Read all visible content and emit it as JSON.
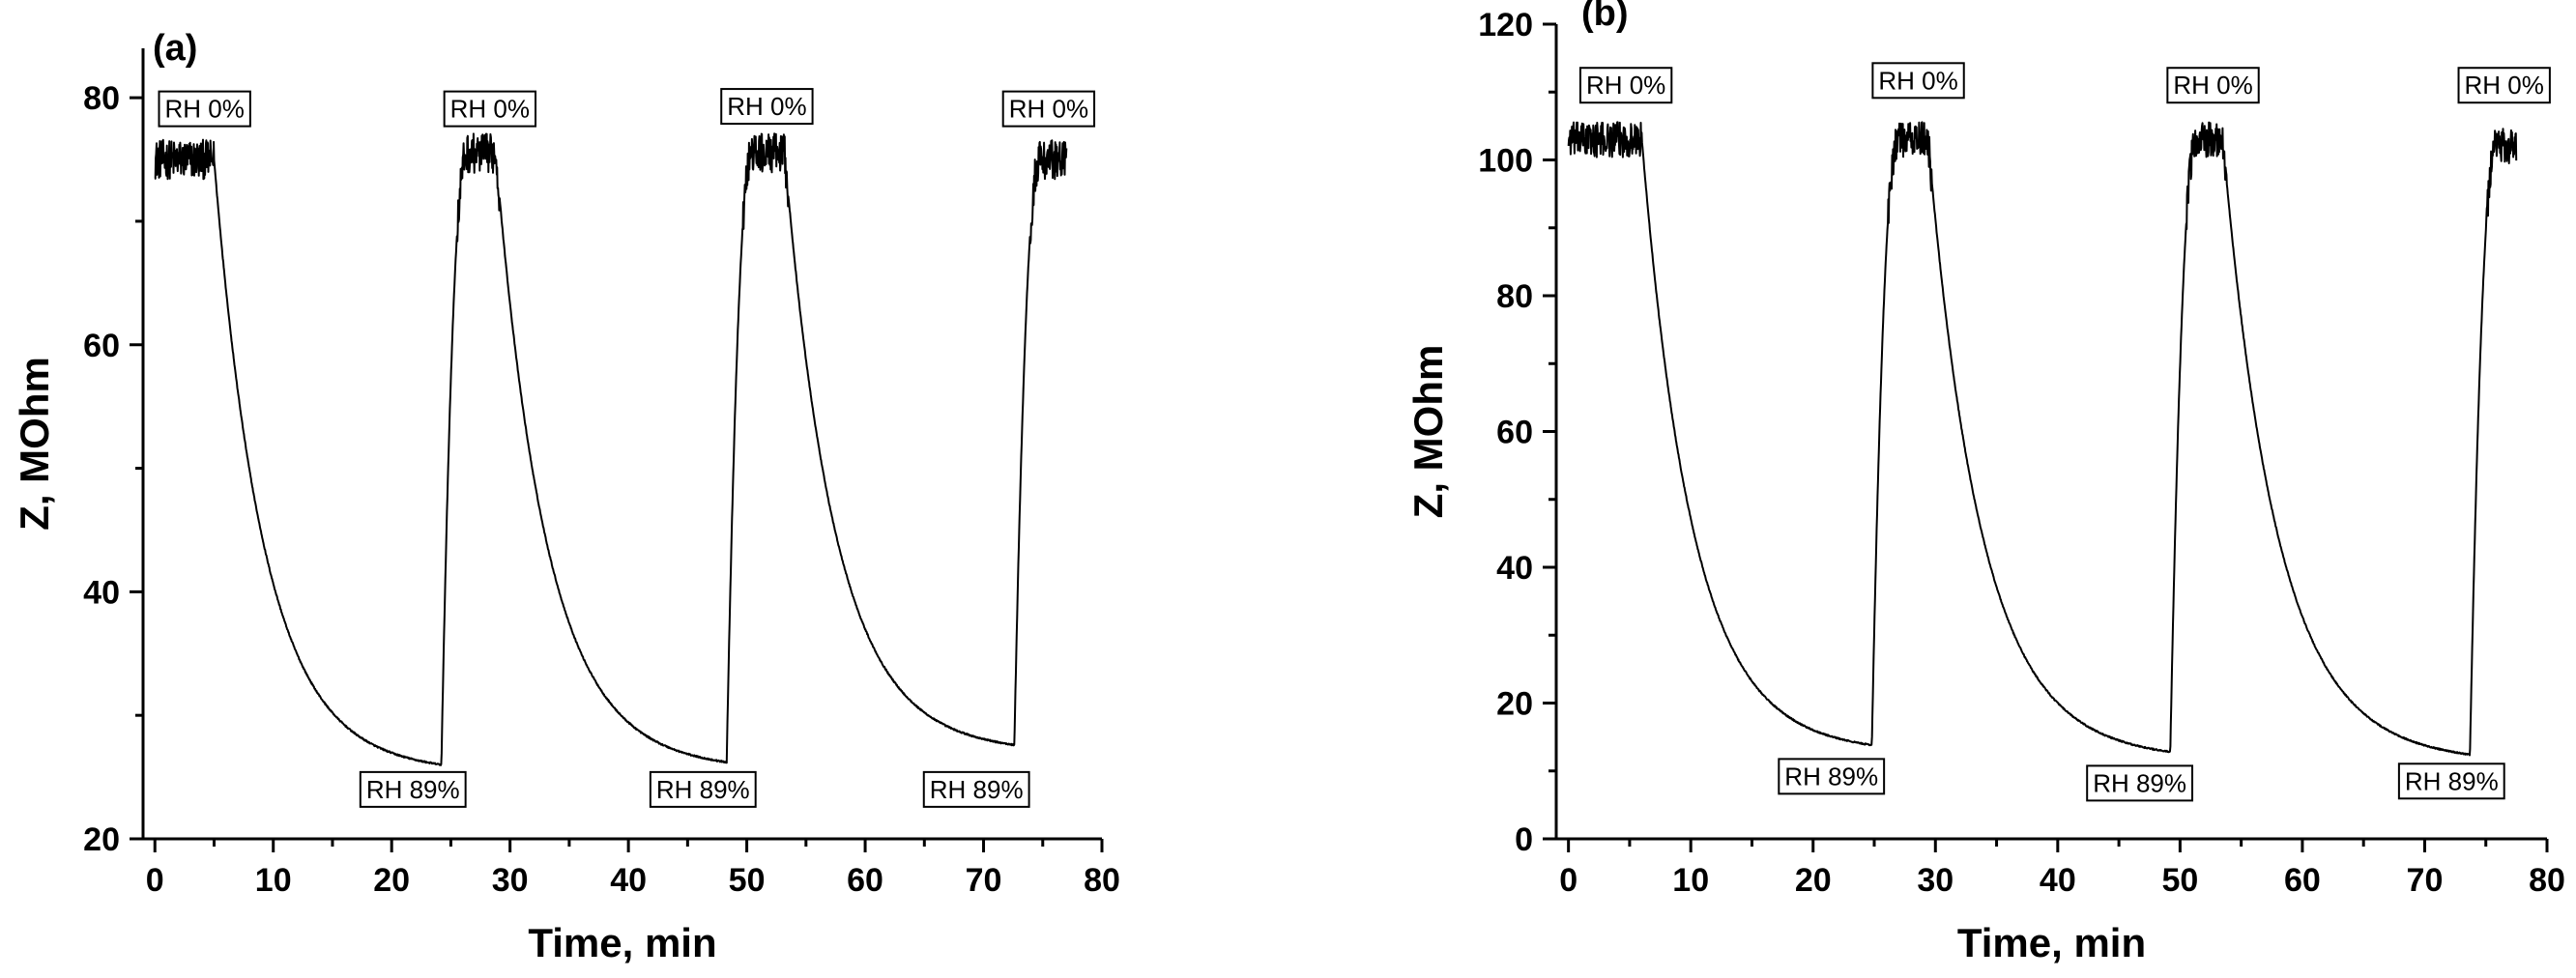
{
  "chart_data": [
    {
      "panel_label": "(a)",
      "type": "line",
      "xlabel": "Time, min",
      "ylabel": "Z, MOhm",
      "xlim": [
        -1,
        80
      ],
      "ylim": [
        20,
        84
      ],
      "xticks": [
        "0",
        "10",
        "20",
        "30",
        "40",
        "50",
        "60",
        "70",
        "80"
      ],
      "yticks": [
        "20",
        "40",
        "60",
        "80"
      ],
      "cycles": [
        {
          "start": 0,
          "stop": 5,
          "high": 75,
          "end": 24.2,
          "low": 26
        },
        {
          "start": 24.2,
          "stop": 28.8,
          "high": 75.5,
          "end": 48.3,
          "low": 26.2
        },
        {
          "start": 48.3,
          "stop": 53.2,
          "high": 75.5,
          "end": 72.6,
          "low": 27.6
        },
        {
          "start": 72.6,
          "stop": 77,
          "high": 75,
          "end": null,
          "low": null
        }
      ],
      "noise": 1.6,
      "annotations": [
        {
          "text": "RH 0%",
          "x": 4.2,
          "y": 79.1
        },
        {
          "text": "RH 0%",
          "x": 28.3,
          "y": 79.1
        },
        {
          "text": "RH 0%",
          "x": 51.7,
          "y": 79.3
        },
        {
          "text": "RH 0%",
          "x": 75.5,
          "y": 79.1
        },
        {
          "text": "RH 89%",
          "x": 21.8,
          "y": 24.0
        },
        {
          "text": "RH 89%",
          "x": 46.3,
          "y": 24.0
        },
        {
          "text": "RH 89%",
          "x": 69.4,
          "y": 24.0
        }
      ]
    },
    {
      "panel_label": "(b)",
      "type": "line",
      "xlabel": "Time, min",
      "ylabel": "Z, MOhm",
      "xlim": [
        -1,
        80
      ],
      "ylim": [
        0,
        120
      ],
      "xticks": [
        "0",
        "10",
        "20",
        "30",
        "40",
        "50",
        "60",
        "70",
        "80"
      ],
      "yticks": [
        "0",
        "20",
        "40",
        "60",
        "80",
        "100",
        "120"
      ],
      "cycles": [
        {
          "start": 0,
          "stop": 6,
          "high": 103,
          "end": 24.8,
          "low": 13.8
        },
        {
          "start": 24.8,
          "stop": 29.4,
          "high": 103,
          "end": 49.2,
          "low": 12.8
        },
        {
          "start": 49.2,
          "stop": 53.5,
          "high": 103,
          "end": 73.7,
          "low": 12.4
        },
        {
          "start": 73.7,
          "stop": 77.5,
          "high": 102,
          "end": null,
          "low": null
        }
      ],
      "noise": 2.6,
      "annotations": [
        {
          "text": "RH 0%",
          "x": 4.7,
          "y": 111
        },
        {
          "text": "RH 0%",
          "x": 28.6,
          "y": 111.7
        },
        {
          "text": "RH 0%",
          "x": 52.7,
          "y": 111
        },
        {
          "text": "RH 0%",
          "x": 76.5,
          "y": 111
        },
        {
          "text": "RH 89%",
          "x": 21.5,
          "y": 9.2
        },
        {
          "text": "RH 89%",
          "x": 46.7,
          "y": 8.2
        },
        {
          "text": "RH 89%",
          "x": 72.2,
          "y": 8.5
        }
      ]
    }
  ]
}
